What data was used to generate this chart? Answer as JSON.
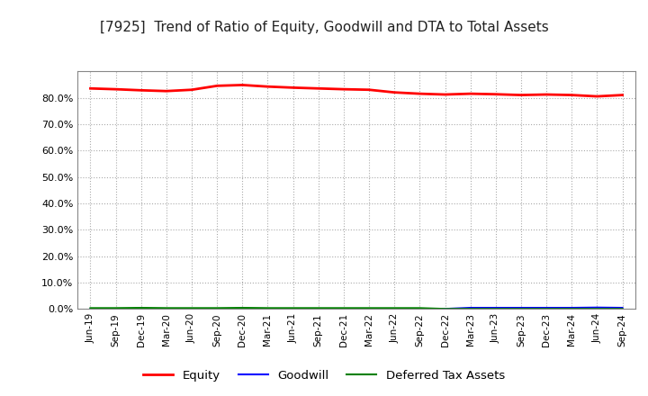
{
  "title": "[7925]  Trend of Ratio of Equity, Goodwill and DTA to Total Assets",
  "x_labels": [
    "Jun-19",
    "Sep-19",
    "Dec-19",
    "Mar-20",
    "Jun-20",
    "Sep-20",
    "Dec-20",
    "Mar-21",
    "Jun-21",
    "Sep-21",
    "Dec-21",
    "Mar-22",
    "Jun-22",
    "Sep-22",
    "Dec-22",
    "Mar-23",
    "Jun-23",
    "Sep-23",
    "Dec-23",
    "Mar-24",
    "Jun-24",
    "Sep-24"
  ],
  "equity": [
    83.5,
    83.2,
    82.8,
    82.5,
    83.0,
    84.5,
    84.8,
    84.2,
    83.8,
    83.5,
    83.2,
    83.0,
    82.0,
    81.5,
    81.2,
    81.5,
    81.3,
    81.0,
    81.2,
    81.0,
    80.5,
    81.0
  ],
  "goodwill": [
    0.0,
    0.0,
    0.0,
    0.0,
    0.0,
    0.0,
    0.0,
    0.0,
    0.0,
    0.0,
    0.0,
    0.0,
    0.0,
    0.0,
    0.0,
    0.4,
    0.4,
    0.4,
    0.4,
    0.4,
    0.5,
    0.4
  ],
  "dta": [
    0.3,
    0.3,
    0.4,
    0.3,
    0.3,
    0.3,
    0.4,
    0.3,
    0.3,
    0.3,
    0.3,
    0.3,
    0.3,
    0.3,
    0.0,
    0.0,
    0.0,
    0.0,
    0.0,
    0.0,
    0.0,
    0.0
  ],
  "equity_color": "#FF0000",
  "goodwill_color": "#0000FF",
  "dta_color": "#008000",
  "ylim": [
    0,
    90
  ],
  "yticks": [
    0.0,
    10.0,
    20.0,
    30.0,
    40.0,
    50.0,
    60.0,
    70.0,
    80.0
  ],
  "background_color": "#FFFFFF",
  "grid_color": "#AAAAAA",
  "title_fontsize": 11,
  "legend_labels": [
    "Equity",
    "Goodwill",
    "Deferred Tax Assets"
  ]
}
